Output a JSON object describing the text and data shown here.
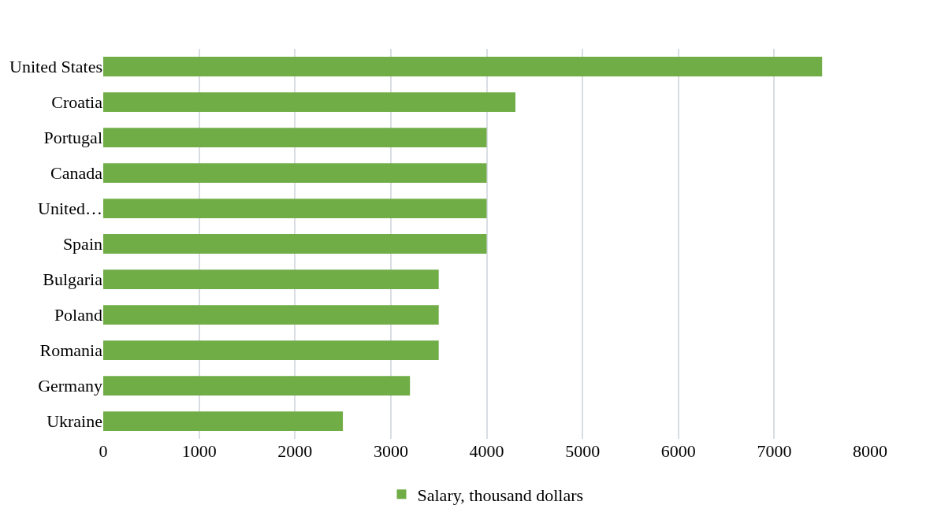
{
  "chart_data": {
    "type": "bar",
    "orientation": "horizontal",
    "categories": [
      "United States",
      "Croatia",
      "Portugal",
      "Canada",
      "United…",
      "Spain",
      "Bulgaria",
      "Poland",
      "Romania",
      "Germany",
      "Ukraine"
    ],
    "series": [
      {
        "name": "Salary, thousand dollars",
        "color": "#70ad47",
        "values": [
          7500,
          4300,
          4000,
          4000,
          4000,
          4000,
          3500,
          3500,
          3500,
          3200,
          2500
        ]
      }
    ],
    "xlim": [
      0,
      8000
    ],
    "xticks": [
      0,
      1000,
      2000,
      3000,
      4000,
      5000,
      6000,
      7000,
      8000
    ],
    "grid": "x",
    "legend": "bottom"
  }
}
